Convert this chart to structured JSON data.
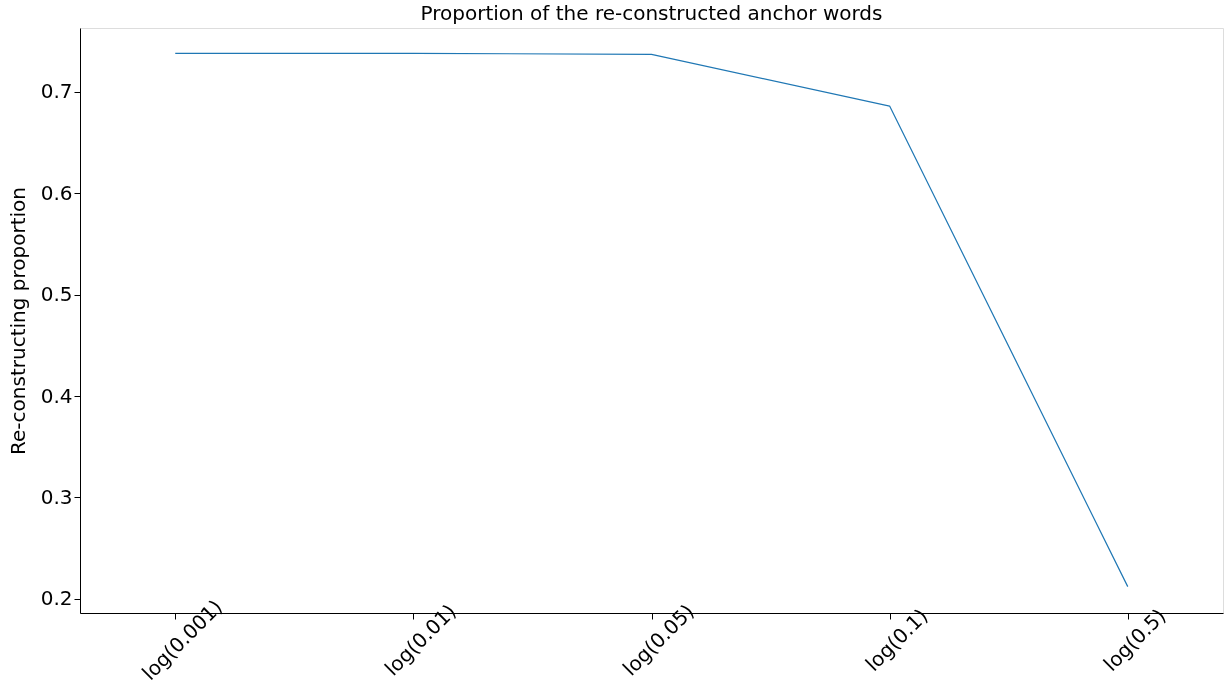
{
  "chart_data": {
    "type": "line",
    "title": "Proportion of the re-constructed anchor words",
    "ylabel": "Re-constructing proportion",
    "categories": [
      "log(0.001)",
      "log(0.01)",
      "log(0.05)",
      "log(0.1)",
      "log(0.5)"
    ],
    "series": [
      {
        "color": "#1f77b4",
        "values": [
          0.738,
          0.738,
          0.737,
          0.686,
          0.212
        ]
      }
    ],
    "ylim": [
      0.186,
      0.763
    ],
    "yticks": [
      0.2,
      0.3,
      0.4,
      0.5,
      0.6,
      0.7
    ],
    "grid": false,
    "marker": "none",
    "line_style": "solid",
    "legend": false
  }
}
